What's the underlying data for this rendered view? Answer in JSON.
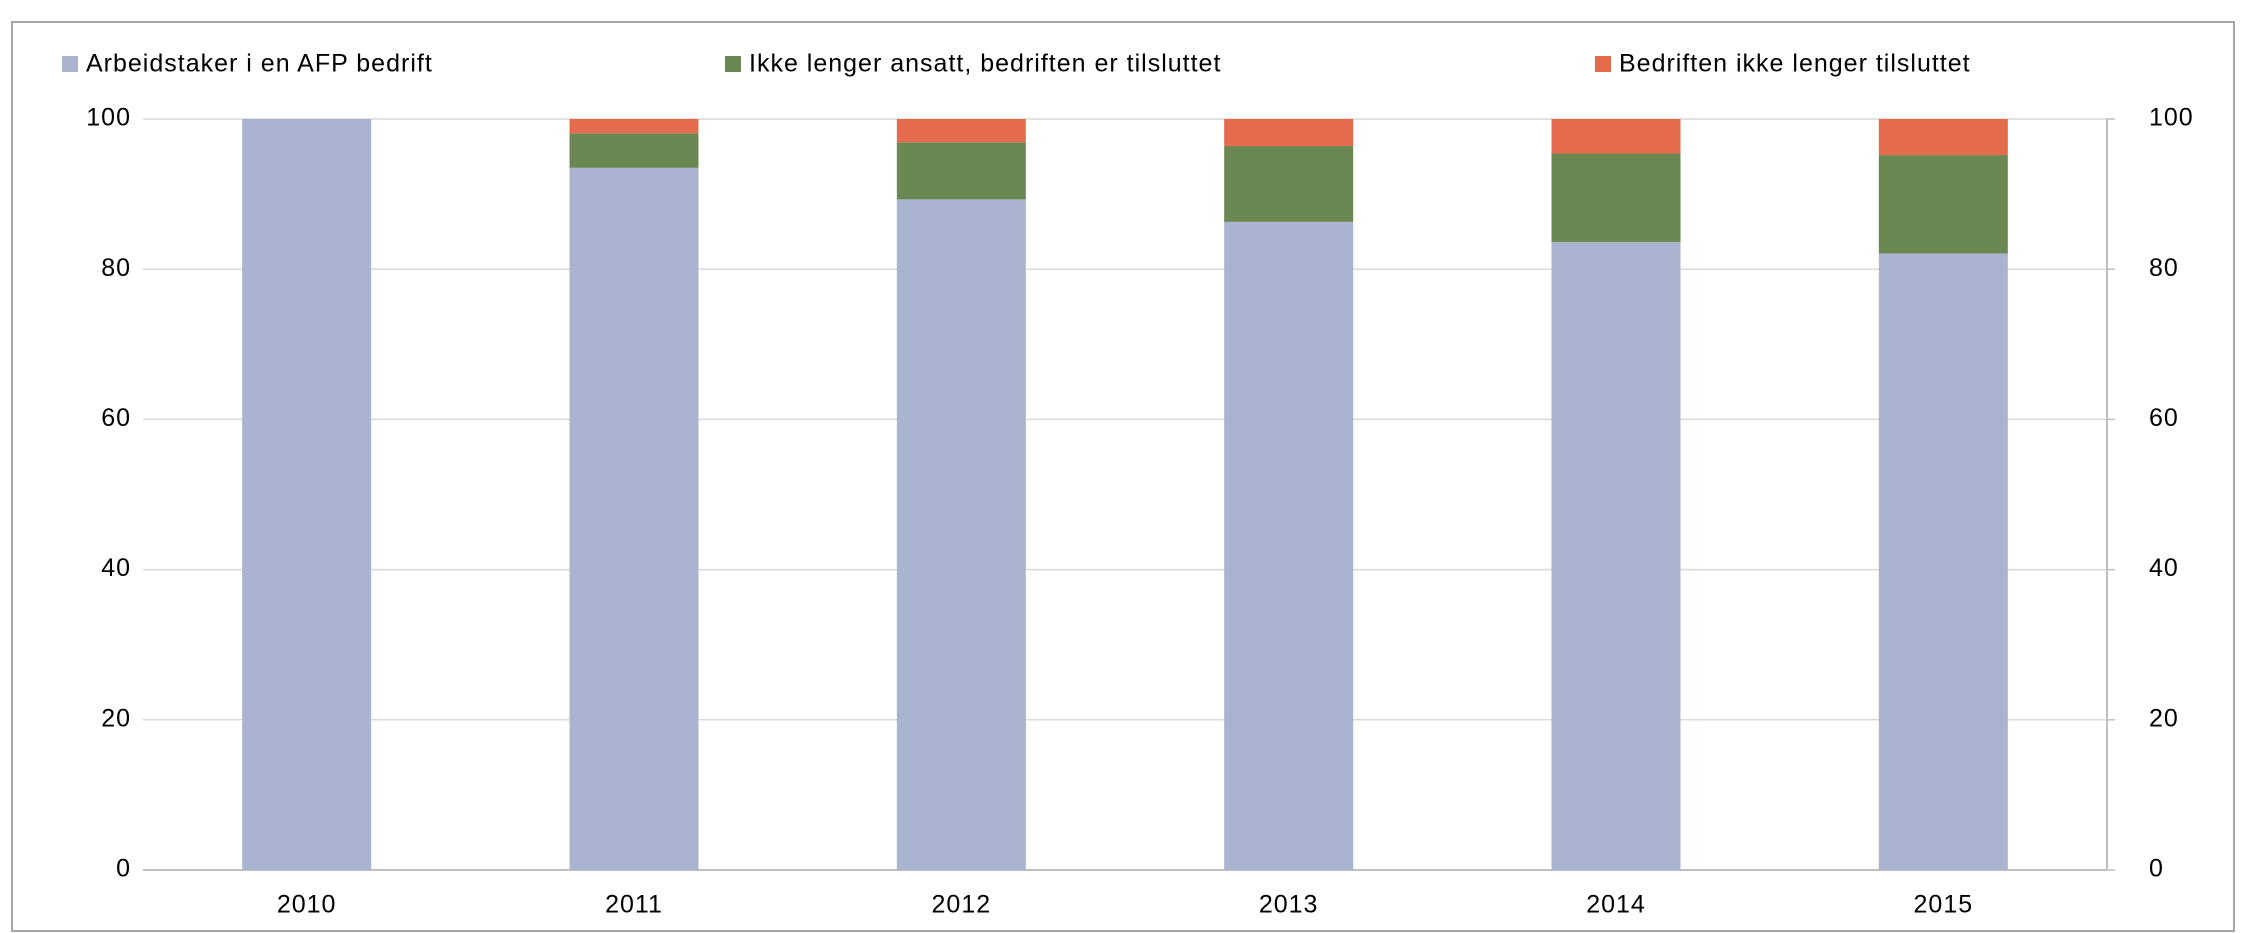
{
  "chart_data": {
    "type": "stacked_bar",
    "categories": [
      "2010",
      "2011",
      "2012",
      "2013",
      "2014",
      "2015"
    ],
    "series": [
      {
        "name": "Arbeidstaker i en AFP bedrift",
        "color": "#aab3cf",
        "values": [
          100,
          93.5,
          89.3,
          86.3,
          83.6,
          82.1
        ]
      },
      {
        "name": "Ikke lenger ansatt, bedriften er tilsluttet",
        "color": "#6b8752",
        "values": [
          0,
          4.6,
          7.6,
          10.1,
          11.8,
          13.1
        ]
      },
      {
        "name": "Bedriften ikke lenger tilsluttet",
        "color": "#e46c4c",
        "values": [
          0,
          1.9,
          3.1,
          3.6,
          4.6,
          4.8
        ]
      }
    ],
    "ylim": [
      0,
      100
    ],
    "yticks": [
      0,
      20,
      40,
      60,
      80,
      100
    ],
    "y2lim": [
      0,
      100
    ],
    "y2ticks": [
      0,
      20,
      40,
      60,
      80,
      100
    ],
    "grid": true,
    "legend": "top"
  }
}
